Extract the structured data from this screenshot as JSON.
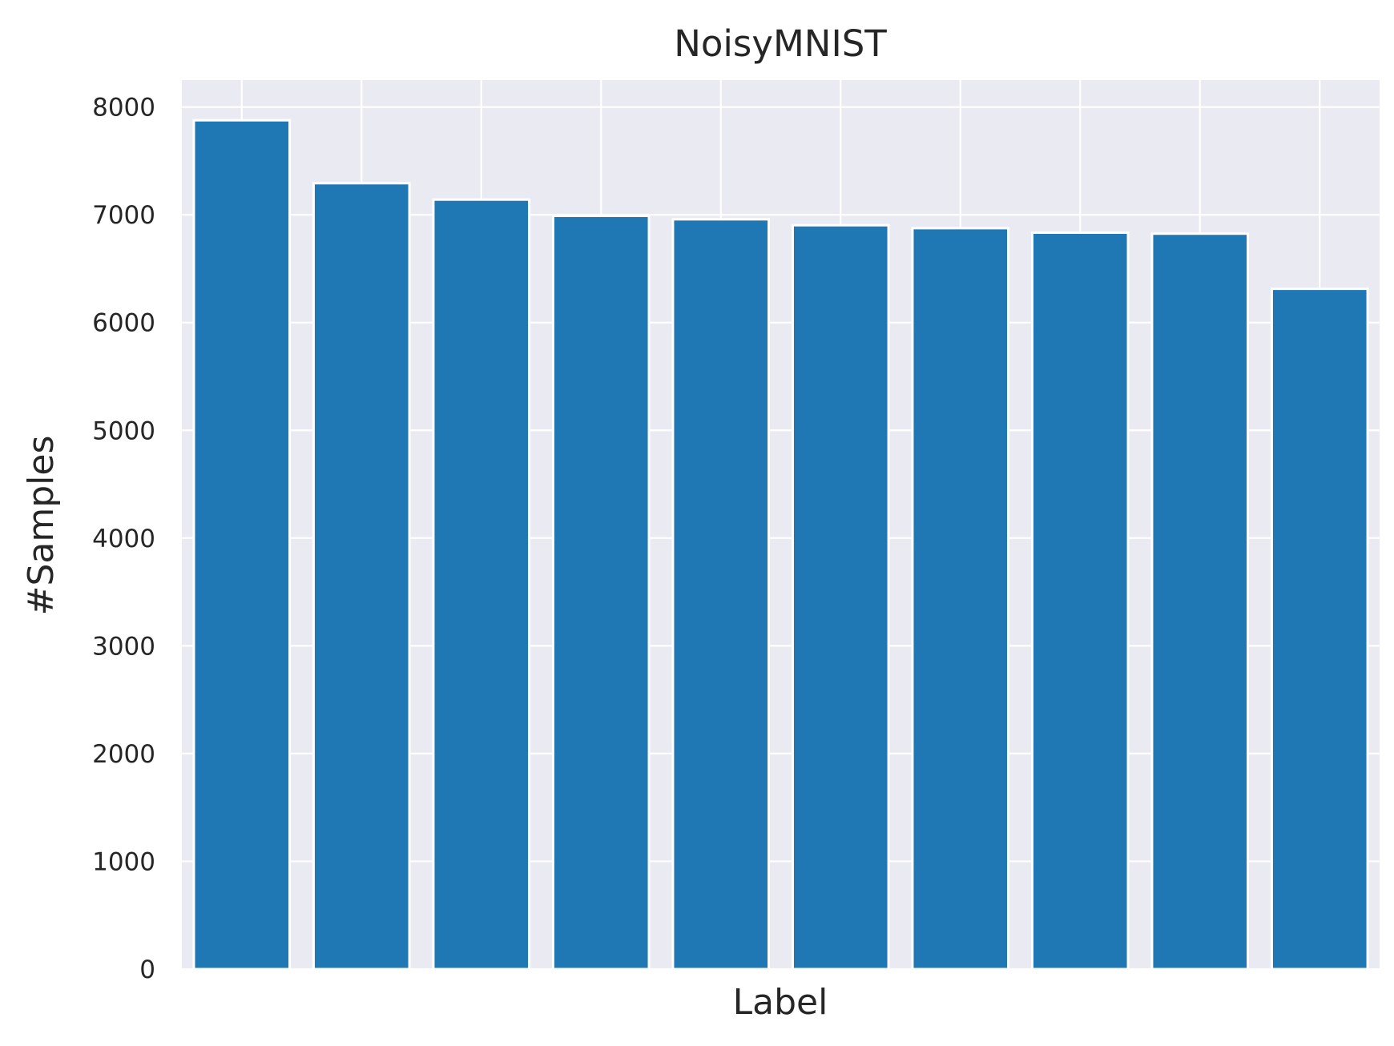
{
  "chart_data": {
    "type": "bar",
    "title": "NoisyMNIST",
    "xlabel": "Label",
    "ylabel": "#Samples",
    "categories": [
      "",
      "",
      "",
      "",
      "",
      "",
      "",
      "",
      "",
      ""
    ],
    "values": [
      7877,
      7293,
      7141,
      6990,
      6958,
      6903,
      6876,
      6834,
      6825,
      6313
    ],
    "ylim": [
      0,
      8250
    ],
    "yticks": [
      0,
      1000,
      2000,
      3000,
      4000,
      5000,
      6000,
      7000,
      8000
    ],
    "grid": true,
    "colors": {
      "bar": "#1f77b4",
      "bar_edge": "#ffffff",
      "plot_background": "#eaeaf2",
      "grid": "#ffffff",
      "text": "#262626"
    }
  }
}
